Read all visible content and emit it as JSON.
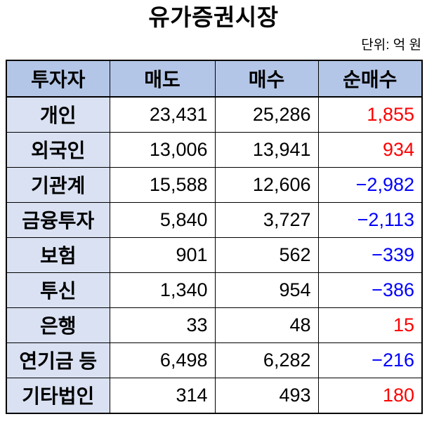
{
  "page": {
    "title": "유가증권시장",
    "unit_label": "단위: 억 원"
  },
  "colors": {
    "header_bg": "#b4c6e7",
    "investor_col_bg": "#d9e1f2",
    "positive_net": "#ff0000",
    "negative_net": "#0000ff",
    "border": "#000000",
    "text": "#000000"
  },
  "table": {
    "columns": [
      "투자자",
      "매도",
      "매수",
      "순매수"
    ],
    "rows": [
      {
        "investor": "개인",
        "sell": "23,431",
        "buy": "25,286",
        "net": "1,855",
        "net_color": "#ff0000"
      },
      {
        "investor": "외국인",
        "sell": "13,006",
        "buy": "13,941",
        "net": "934",
        "net_color": "#ff0000"
      },
      {
        "investor": "기관계",
        "sell": "15,588",
        "buy": "12,606",
        "net": "−2,982",
        "net_color": "#0000ff"
      },
      {
        "investor": "금융투자",
        "sell": "5,840",
        "buy": "3,727",
        "net": "−2,113",
        "net_color": "#0000ff"
      },
      {
        "investor": "보험",
        "sell": "901",
        "buy": "562",
        "net": "−339",
        "net_color": "#0000ff"
      },
      {
        "investor": "투신",
        "sell": "1,340",
        "buy": "954",
        "net": "−386",
        "net_color": "#0000ff"
      },
      {
        "investor": "은행",
        "sell": "33",
        "buy": "48",
        "net": "15",
        "net_color": "#ff0000"
      },
      {
        "investor": "연기금 등",
        "sell": "6,498",
        "buy": "6,282",
        "net": "−216",
        "net_color": "#0000ff"
      },
      {
        "investor": "기타법인",
        "sell": "314",
        "buy": "493",
        "net": "180",
        "net_color": "#ff0000"
      }
    ]
  }
}
